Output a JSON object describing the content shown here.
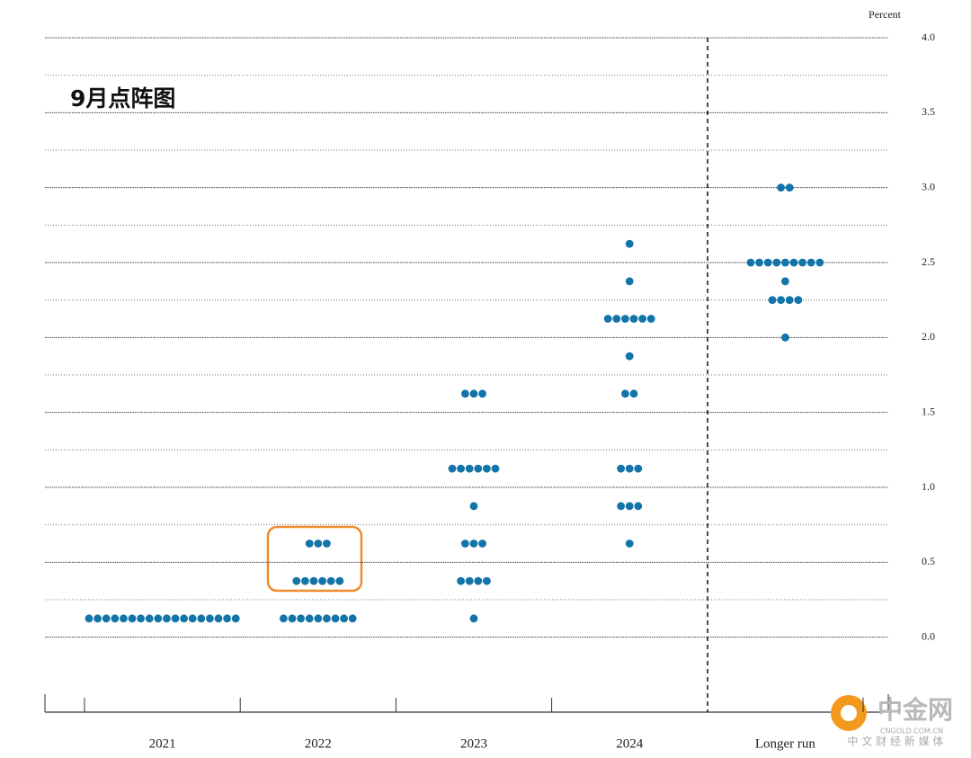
{
  "chart_data": {
    "type": "dot",
    "title": "9月点阵图",
    "y_label": "Percent",
    "categories": [
      "2021",
      "2022",
      "2023",
      "2024",
      "Longer run"
    ],
    "values": [
      [
        0.125,
        0.125,
        0.125,
        0.125,
        0.125,
        0.125,
        0.125,
        0.125,
        0.125,
        0.125,
        0.125,
        0.125,
        0.125,
        0.125,
        0.125,
        0.125,
        0.125,
        0.125
      ],
      [
        0.125,
        0.125,
        0.125,
        0.125,
        0.125,
        0.125,
        0.125,
        0.125,
        0.125,
        0.375,
        0.375,
        0.375,
        0.375,
        0.375,
        0.375,
        0.625,
        0.625,
        0.625
      ],
      [
        0.125,
        0.375,
        0.375,
        0.375,
        0.375,
        0.625,
        0.625,
        0.625,
        0.875,
        1.125,
        1.125,
        1.125,
        1.125,
        1.125,
        1.125,
        1.625,
        1.625,
        1.625
      ],
      [
        0.625,
        0.875,
        0.875,
        0.875,
        1.125,
        1.125,
        1.125,
        1.625,
        1.625,
        1.875,
        2.125,
        2.125,
        2.125,
        2.125,
        2.125,
        2.125,
        2.375,
        2.625
      ],
      [
        2.0,
        2.25,
        2.25,
        2.25,
        2.25,
        2.375,
        2.5,
        2.5,
        2.5,
        2.5,
        2.5,
        2.5,
        2.5,
        2.5,
        2.5,
        3.0,
        3.0
      ]
    ],
    "color": "#1274a8",
    "ylim": [
      -0.5,
      4.0
    ],
    "yticks": [
      {
        "value": 0,
        "label": "0.0"
      },
      0.5,
      {
        "value": 1,
        "label": "1.0"
      },
      1.5,
      {
        "value": 2,
        "label": "2.0"
      },
      2.5,
      {
        "value": 3,
        "label": "3.0"
      },
      3.5,
      {
        "value": 4,
        "label": "4.0"
      }
    ],
    "minor_yticks": [
      0.25,
      0.75,
      1.25,
      1.75,
      2.25,
      2.75,
      3.25,
      3.75
    ],
    "grid": true,
    "watermark": {
      "brand": "中金网",
      "domain": "CNGOLD.COM.CN",
      "tagline": "中 文 财 经 新 媒 体"
    }
  }
}
